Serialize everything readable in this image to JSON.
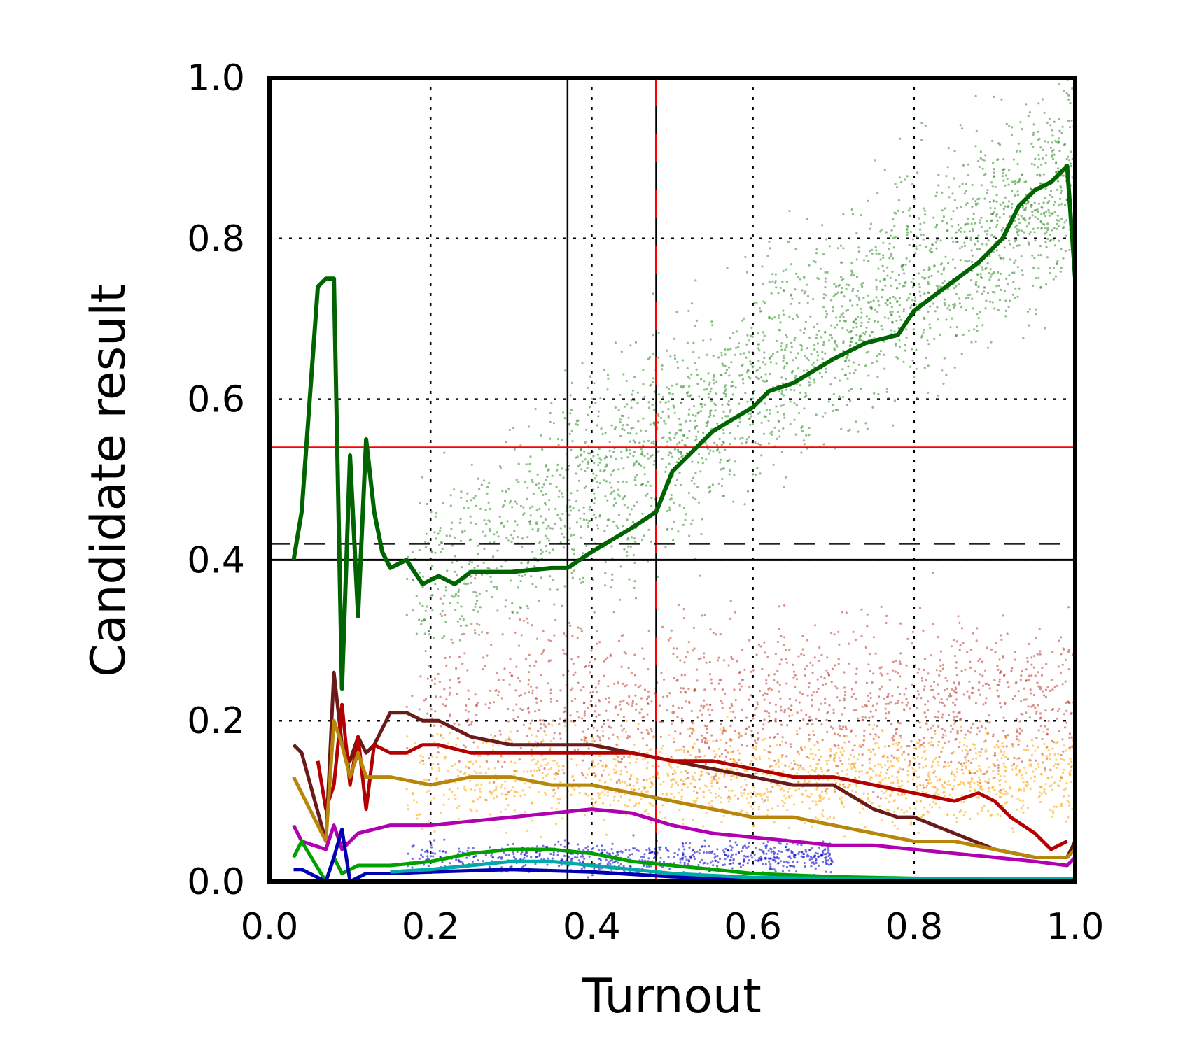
{
  "chart_data": {
    "type": "scatter",
    "xlabel": "Turnout",
    "ylabel": "Candidate result",
    "xlim": [
      0.0,
      1.0
    ],
    "ylim": [
      0.0,
      1.0
    ],
    "x_ticks": [
      "0.0",
      "0.2",
      "0.4",
      "0.6",
      "0.8",
      "1.0"
    ],
    "y_ticks": [
      "0.0",
      "0.2",
      "0.4",
      "0.6",
      "0.8",
      "1.0"
    ],
    "grid": "dotted",
    "legend": "none",
    "reference_lines": {
      "vertical_solid": 0.37,
      "vertical_red_dashed": 0.48,
      "horizontal_red": 0.54,
      "horizontal_black_solid": 0.4,
      "horizontal_black_dashed": 0.42
    },
    "point_clouds": [
      {
        "color": "#2e8b22",
        "center": [
          0.45,
          0.55
        ],
        "spread_x": [
          0.17,
          1.0
        ],
        "spread_y": [
          0.3,
          1.0
        ],
        "trend": "rising"
      },
      {
        "color": "#c0392b",
        "center": [
          0.5,
          0.22
        ],
        "spread_x": [
          0.17,
          1.0
        ],
        "spread_y": [
          0.1,
          0.42
        ],
        "trend": "flat"
      },
      {
        "color": "#ffa500",
        "center": [
          0.5,
          0.13
        ],
        "spread_x": [
          0.17,
          1.0
        ],
        "spread_y": [
          0.05,
          0.22
        ],
        "trend": "flat"
      },
      {
        "color": "#0000cc",
        "center": [
          0.4,
          0.03
        ],
        "spread_x": [
          0.17,
          0.7
        ],
        "spread_y": [
          0.0,
          0.06
        ],
        "trend": "flat"
      }
    ],
    "series": [
      {
        "color": "#006400",
        "x": [
          0.03,
          0.04,
          0.06,
          0.07,
          0.08,
          0.09,
          0.1,
          0.11,
          0.12,
          0.13,
          0.14,
          0.15,
          0.17,
          0.19,
          0.21,
          0.23,
          0.25,
          0.3,
          0.35,
          0.37,
          0.4,
          0.45,
          0.48,
          0.5,
          0.55,
          0.6,
          0.62,
          0.65,
          0.7,
          0.74,
          0.78,
          0.8,
          0.84,
          0.88,
          0.91,
          0.93,
          0.95,
          0.97,
          0.99,
          1.0
        ],
        "y": [
          0.4,
          0.46,
          0.74,
          0.75,
          0.75,
          0.24,
          0.53,
          0.33,
          0.55,
          0.46,
          0.41,
          0.39,
          0.4,
          0.37,
          0.38,
          0.37,
          0.385,
          0.385,
          0.39,
          0.39,
          0.41,
          0.44,
          0.46,
          0.51,
          0.56,
          0.59,
          0.61,
          0.62,
          0.65,
          0.67,
          0.68,
          0.71,
          0.74,
          0.77,
          0.8,
          0.84,
          0.86,
          0.87,
          0.89,
          0.75
        ]
      },
      {
        "color": "#6b1a1a",
        "x": [
          0.03,
          0.04,
          0.07,
          0.08,
          0.09,
          0.1,
          0.11,
          0.12,
          0.13,
          0.15,
          0.17,
          0.19,
          0.21,
          0.25,
          0.3,
          0.35,
          0.4,
          0.45,
          0.5,
          0.55,
          0.6,
          0.65,
          0.7,
          0.75,
          0.78,
          0.8,
          0.85,
          0.9,
          0.95,
          0.99,
          1.0
        ],
        "y": [
          0.17,
          0.16,
          0.05,
          0.26,
          0.17,
          0.15,
          0.18,
          0.16,
          0.17,
          0.21,
          0.21,
          0.2,
          0.2,
          0.18,
          0.17,
          0.17,
          0.17,
          0.16,
          0.15,
          0.14,
          0.13,
          0.12,
          0.12,
          0.09,
          0.08,
          0.08,
          0.06,
          0.04,
          0.03,
          0.03,
          0.05
        ]
      },
      {
        "color": "#b30000",
        "x": [
          0.06,
          0.07,
          0.08,
          0.09,
          0.1,
          0.11,
          0.12,
          0.13,
          0.15,
          0.17,
          0.19,
          0.21,
          0.25,
          0.3,
          0.35,
          0.4,
          0.45,
          0.5,
          0.55,
          0.6,
          0.65,
          0.7,
          0.75,
          0.8,
          0.85,
          0.88,
          0.9,
          0.92,
          0.95,
          0.97,
          0.99
        ],
        "y": [
          0.15,
          0.09,
          0.12,
          0.22,
          0.12,
          0.18,
          0.09,
          0.17,
          0.16,
          0.16,
          0.17,
          0.17,
          0.16,
          0.16,
          0.16,
          0.16,
          0.16,
          0.15,
          0.15,
          0.14,
          0.13,
          0.13,
          0.12,
          0.11,
          0.1,
          0.11,
          0.1,
          0.08,
          0.06,
          0.04,
          0.05
        ]
      },
      {
        "color": "#b8860b",
        "x": [
          0.03,
          0.04,
          0.07,
          0.08,
          0.09,
          0.1,
          0.11,
          0.12,
          0.15,
          0.2,
          0.25,
          0.3,
          0.35,
          0.4,
          0.45,
          0.5,
          0.55,
          0.6,
          0.65,
          0.7,
          0.75,
          0.8,
          0.85,
          0.9,
          0.95,
          0.99,
          1.0
        ],
        "y": [
          0.13,
          0.11,
          0.05,
          0.2,
          0.17,
          0.13,
          0.16,
          0.13,
          0.13,
          0.12,
          0.13,
          0.13,
          0.12,
          0.12,
          0.11,
          0.1,
          0.09,
          0.08,
          0.08,
          0.07,
          0.06,
          0.05,
          0.05,
          0.04,
          0.03,
          0.03,
          0.04
        ]
      },
      {
        "color": "#b000b0",
        "x": [
          0.03,
          0.04,
          0.07,
          0.08,
          0.09,
          0.11,
          0.15,
          0.2,
          0.25,
          0.3,
          0.35,
          0.4,
          0.45,
          0.5,
          0.55,
          0.6,
          0.65,
          0.7,
          0.75,
          0.8,
          0.85,
          0.9,
          0.95,
          0.99,
          1.0
        ],
        "y": [
          0.07,
          0.05,
          0.04,
          0.07,
          0.04,
          0.06,
          0.07,
          0.07,
          0.075,
          0.08,
          0.085,
          0.09,
          0.085,
          0.07,
          0.06,
          0.055,
          0.05,
          0.045,
          0.045,
          0.04,
          0.035,
          0.03,
          0.025,
          0.02,
          0.03
        ]
      },
      {
        "color": "#00a000",
        "x": [
          0.03,
          0.04,
          0.07,
          0.08,
          0.09,
          0.11,
          0.15,
          0.2,
          0.25,
          0.3,
          0.35,
          0.4,
          0.45,
          0.5,
          0.6,
          0.7,
          0.8,
          0.9,
          1.0
        ],
        "y": [
          0.03,
          0.05,
          0.0,
          0.03,
          0.01,
          0.02,
          0.02,
          0.025,
          0.035,
          0.04,
          0.04,
          0.035,
          0.025,
          0.02,
          0.01,
          0.006,
          0.004,
          0.003,
          0.003
        ]
      },
      {
        "color": "#0000b0",
        "x": [
          0.03,
          0.04,
          0.07,
          0.08,
          0.09,
          0.1,
          0.12,
          0.15,
          0.2,
          0.3,
          0.4,
          0.5,
          0.6,
          0.8,
          1.0
        ],
        "y": [
          0.015,
          0.015,
          0.0,
          0.03,
          0.065,
          0.0,
          0.01,
          0.01,
          0.012,
          0.015,
          0.012,
          0.006,
          0.003,
          0.002,
          0.002
        ]
      },
      {
        "color": "#00aaaa",
        "x": [
          0.15,
          0.2,
          0.25,
          0.3,
          0.35,
          0.4,
          0.5,
          0.6,
          0.8,
          1.0
        ],
        "y": [
          0.012,
          0.015,
          0.02,
          0.025,
          0.025,
          0.02,
          0.01,
          0.005,
          0.003,
          0.003
        ]
      }
    ]
  }
}
